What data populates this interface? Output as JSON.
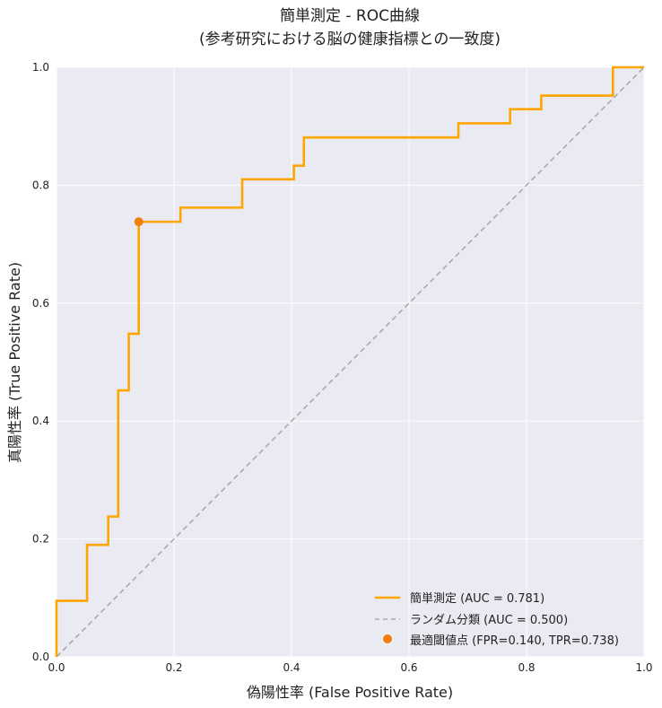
{
  "chart_data": {
    "type": "line",
    "title_line1": "簡単測定 - ROC曲線",
    "title_line2": "(参考研究における脳の健康指標との一致度)",
    "xlabel": "偽陽性率 (False Positive Rate)",
    "ylabel": "真陽性率 (True Positive Rate)",
    "xlim": [
      0,
      1
    ],
    "ylim": [
      0,
      1
    ],
    "x_ticks": [
      "0.0",
      "0.2",
      "0.4",
      "0.6",
      "0.8",
      "1.0"
    ],
    "y_ticks": [
      "0.0",
      "0.2",
      "0.4",
      "0.6",
      "0.8",
      "1.0"
    ],
    "grid": true,
    "legend_position": "lower-right",
    "series": [
      {
        "name": "簡単測定 (AUC = 0.781)",
        "color": "#FFA500",
        "style": "solid",
        "fpr": [
          0.0,
          0.0,
          0.052,
          0.052,
          0.088,
          0.088,
          0.105,
          0.105,
          0.123,
          0.123,
          0.14,
          0.14,
          0.211,
          0.211,
          0.316,
          0.316,
          0.404,
          0.404,
          0.421,
          0.421,
          0.684,
          0.684,
          0.772,
          0.772,
          0.825,
          0.825,
          0.947,
          0.947,
          1.0
        ],
        "tpr": [
          0.0,
          0.095,
          0.095,
          0.19,
          0.19,
          0.238,
          0.238,
          0.452,
          0.452,
          0.548,
          0.548,
          0.738,
          0.738,
          0.762,
          0.762,
          0.81,
          0.81,
          0.833,
          0.833,
          0.881,
          0.881,
          0.905,
          0.905,
          0.929,
          0.929,
          0.952,
          0.952,
          1.0,
          1.0
        ]
      },
      {
        "name": "ランダム分類 (AUC = 0.500)",
        "color": "#A9A9A9",
        "style": "dashed",
        "fpr": [
          0,
          1
        ],
        "tpr": [
          0,
          1
        ]
      }
    ],
    "optimal_point": {
      "name": "最適閾値点 (FPR=0.140, TPR=0.738)",
      "fpr": 0.14,
      "tpr": 0.738,
      "color": "#F07F0E"
    },
    "colors": {
      "background": "#EAEAF2",
      "grid": "#FFFFFF"
    }
  }
}
